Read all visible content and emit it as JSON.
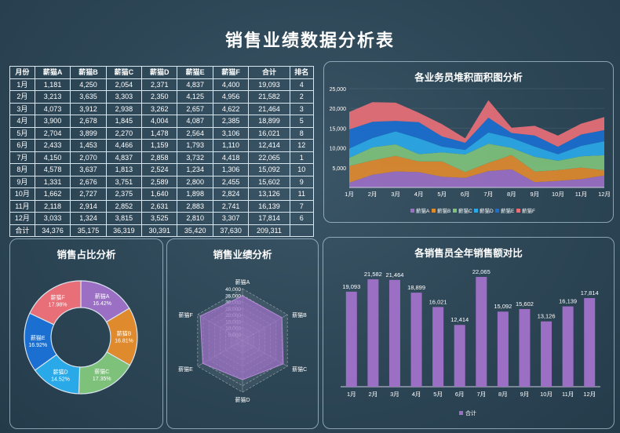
{
  "title": "销售业绩数据分析表",
  "colors": [
    "#9b6fc4",
    "#e08a2e",
    "#7ec17b",
    "#2aa9e8",
    "#1a6fd0",
    "#e86f78"
  ],
  "table": {
    "headers": [
      "月份",
      "薪猫A",
      "薪猫B",
      "薪猫C",
      "薪猫D",
      "薪猫E",
      "薪猫F",
      "合计",
      "排名"
    ],
    "rows": [
      [
        "1月",
        "1,181",
        "4,250",
        "2,054",
        "2,371",
        "4,837",
        "4,400",
        "19,093",
        "4"
      ],
      [
        "2月",
        "3,213",
        "3,635",
        "3,303",
        "2,350",
        "4,125",
        "4,956",
        "21,582",
        "2"
      ],
      [
        "3月",
        "4,073",
        "3,912",
        "2,938",
        "3,262",
        "2,657",
        "4,622",
        "21,464",
        "3"
      ],
      [
        "4月",
        "3,900",
        "2,678",
        "1,845",
        "4,004",
        "4,087",
        "2,385",
        "18,899",
        "5"
      ],
      [
        "5月",
        "2,704",
        "3,899",
        "2,270",
        "1,478",
        "2,564",
        "3,106",
        "16,021",
        "8"
      ],
      [
        "6月",
        "2,433",
        "1,453",
        "4,466",
        "1,159",
        "1,793",
        "1,110",
        "12,414",
        "12"
      ],
      [
        "7月",
        "4,150",
        "2,070",
        "4,837",
        "2,858",
        "3,732",
        "4,418",
        "22,065",
        "1"
      ],
      [
        "8月",
        "4,578",
        "3,637",
        "1,813",
        "2,524",
        "1,234",
        "1,306",
        "15,092",
        "10"
      ],
      [
        "9月",
        "1,331",
        "2,676",
        "3,751",
        "2,589",
        "2,800",
        "2,455",
        "15,602",
        "9"
      ],
      [
        "10月",
        "1,662",
        "2,727",
        "2,375",
        "1,640",
        "1,898",
        "2,824",
        "13,126",
        "11"
      ],
      [
        "11月",
        "2,118",
        "2,914",
        "2,852",
        "2,631",
        "2,883",
        "2,741",
        "16,139",
        "7"
      ],
      [
        "12月",
        "3,033",
        "1,324",
        "3,815",
        "3,525",
        "2,810",
        "3,307",
        "17,814",
        "6"
      ],
      [
        "合计",
        "34,376",
        "35,175",
        "36,319",
        "30,391",
        "35,420",
        "37,630",
        "209,311",
        ""
      ]
    ]
  },
  "chart_data": [
    {
      "type": "area",
      "title": "各业务员堆积面积图分析",
      "categories": [
        "1月",
        "2月",
        "3月",
        "4月",
        "5月",
        "6月",
        "7月",
        "8月",
        "9月",
        "10月",
        "11月",
        "12月"
      ],
      "yticks": [
        "25,000",
        "20,000",
        "15,000",
        "10,000",
        "5,000"
      ],
      "ylim": [
        0,
        25000
      ],
      "series": [
        {
          "name": "薪猫A",
          "values": [
            1181,
            3213,
            4073,
            3900,
            2704,
            2433,
            4150,
            4578,
            1331,
            1662,
            2118,
            3033
          ]
        },
        {
          "name": "薪猫B",
          "values": [
            4250,
            3635,
            3912,
            2678,
            3899,
            1453,
            2070,
            3637,
            2676,
            2727,
            2914,
            1324
          ]
        },
        {
          "name": "薪猫C",
          "values": [
            2054,
            3303,
            2938,
            1845,
            2270,
            4466,
            4837,
            1813,
            3751,
            2375,
            2852,
            3815
          ]
        },
        {
          "name": "薪猫D",
          "values": [
            2371,
            2350,
            3262,
            4004,
            1478,
            1159,
            2858,
            2524,
            2589,
            1640,
            2631,
            3525
          ]
        },
        {
          "name": "薪猫E",
          "values": [
            4837,
            4125,
            2657,
            4087,
            2564,
            1793,
            3732,
            1234,
            2800,
            1898,
            2883,
            2810
          ]
        },
        {
          "name": "薪猫F",
          "values": [
            4400,
            4956,
            4622,
            2385,
            3106,
            1110,
            4418,
            1306,
            2455,
            2824,
            2741,
            3307
          ]
        }
      ]
    },
    {
      "type": "pie",
      "title": "销售占比分析",
      "slices": [
        {
          "name": "薪猫A",
          "value": 16.42,
          "label": "16.42%"
        },
        {
          "name": "薪猫B",
          "value": 16.81,
          "label": "16.81%"
        },
        {
          "name": "薪猫C",
          "value": 17.35,
          "label": "17.35%"
        },
        {
          "name": "薪猫D",
          "value": 14.52,
          "label": "14.52%"
        },
        {
          "name": "薪猫E",
          "value": 16.92,
          "label": "16.92%"
        },
        {
          "name": "薪猫F",
          "value": 17.98,
          "label": "17.98%"
        }
      ]
    },
    {
      "type": "radar",
      "title": "销售业绩分析",
      "axes": [
        "薪猫A",
        "薪猫B",
        "薪猫C",
        "薪猫D",
        "薪猫E",
        "薪猫F"
      ],
      "rticks": [
        "40,000",
        "35,000",
        "30,000",
        "25,000",
        "20,000",
        "15,000",
        "10,000",
        "5,000"
      ],
      "max": 40000,
      "values": [
        34376,
        35175,
        36319,
        30391,
        35420,
        37630
      ]
    },
    {
      "type": "bar",
      "title": "各销售员全年销售额对比",
      "categories": [
        "1月",
        "2月",
        "3月",
        "4月",
        "5月",
        "6月",
        "7月",
        "8月",
        "9月",
        "10月",
        "11月",
        "12月"
      ],
      "values": [
        19093,
        21582,
        21464,
        18899,
        16021,
        12414,
        22065,
        15092,
        15602,
        13126,
        16139,
        17814
      ],
      "labels": [
        "19,093",
        "21,582",
        "21,464",
        "18,899",
        "16,021",
        "12,414",
        "22,065",
        "15,092",
        "15,602",
        "13,126",
        "16,139",
        "17,814"
      ],
      "legend": "合计"
    }
  ]
}
